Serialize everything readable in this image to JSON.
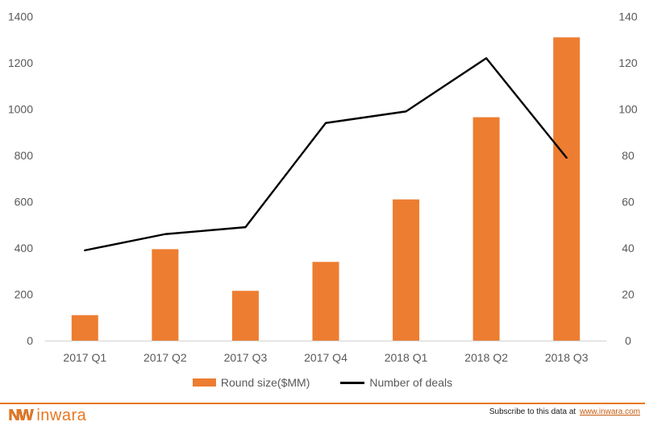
{
  "colors": {
    "bar": "#ED7D31",
    "line": "#000000",
    "axis_label": "#595959",
    "axis_line": "#D9D9D9",
    "footer_rule": "#E87722",
    "logo": "#E87722",
    "link": "#C55A11"
  },
  "chart_data": {
    "type": "combo",
    "categories": [
      "2017 Q1",
      "2017 Q2",
      "2017 Q3",
      "2017 Q4",
      "2018 Q1",
      "2018 Q2",
      "2018 Q3"
    ],
    "series": [
      {
        "name": "Round size($MM)",
        "type": "bar",
        "axis": "left",
        "values": [
          110,
          395,
          215,
          340,
          610,
          965,
          1310
        ]
      },
      {
        "name": "Number of deals",
        "type": "line",
        "axis": "right",
        "values": [
          39,
          46,
          49,
          94,
          99,
          122,
          79
        ]
      }
    ],
    "left_axis": {
      "min": 0,
      "max": 1400,
      "step": 200
    },
    "right_axis": {
      "min": 0,
      "max": 140,
      "step": 20
    },
    "grid": false,
    "legend_position": "bottom"
  },
  "footer": {
    "logo_mark": "NW",
    "logo_text": "inwara",
    "subscribe_prefix": "Subscribe to this data at ",
    "subscribe_link": "www.inwara.com"
  }
}
